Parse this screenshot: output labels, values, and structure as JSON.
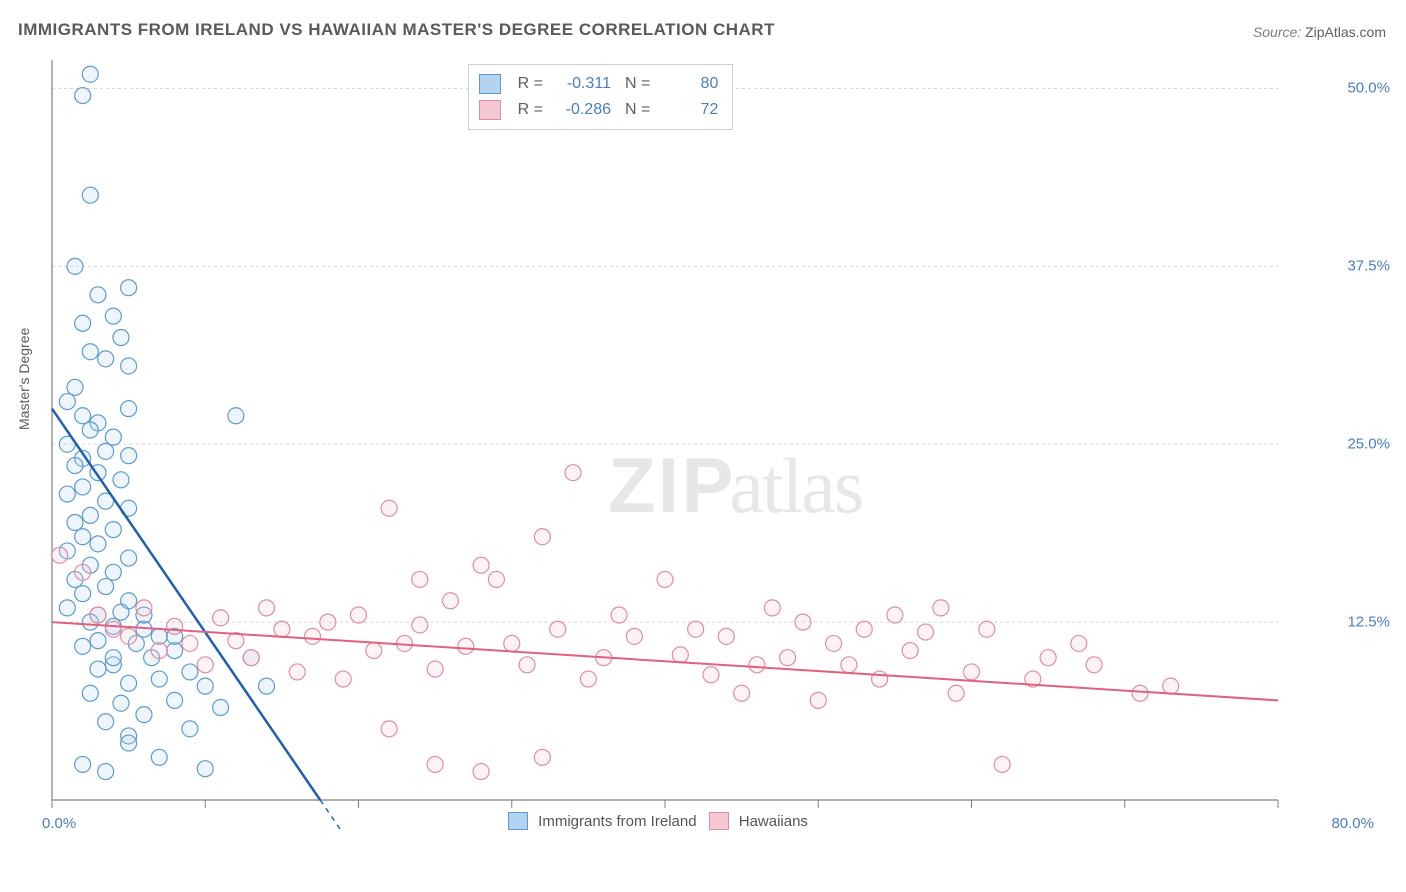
{
  "title": "IMMIGRANTS FROM IRELAND VS HAWAIIAN MASTER'S DEGREE CORRELATION CHART",
  "source_label": "Source: ",
  "source_value": "ZipAtlas.com",
  "watermark_bold": "ZIP",
  "watermark_light": "atlas",
  "chart": {
    "type": "scatter",
    "xlim": [
      0,
      80
    ],
    "ylim": [
      0,
      52
    ],
    "x_axis_left_label": "0.0%",
    "x_axis_right_label": "80.0%",
    "y_label": "Master's Degree",
    "y_ticks": [
      12.5,
      25.0,
      37.5,
      50.0
    ],
    "y_tick_labels": [
      "12.5%",
      "25.0%",
      "37.5%",
      "50.0%"
    ],
    "x_ticks": [
      0,
      10,
      20,
      30,
      40,
      50,
      60,
      70,
      80
    ],
    "grid_color": "#d8d8d8",
    "grid_dash": "3,3",
    "axis_color": "#808080",
    "background_color": "#ffffff",
    "marker_radius": 8,
    "marker_stroke_width": 1.2,
    "marker_fill_opacity": 0.22,
    "series": [
      {
        "name": "Immigrants from Ireland",
        "color_stroke": "#5b9bd5",
        "color_fill": "#b3d3f0",
        "R": "-0.311",
        "N": "80",
        "regression": {
          "x1": 0,
          "y1": 27.5,
          "x2": 17.5,
          "y2": 0,
          "extend_dash_to_x": 22,
          "stroke": "#1f5fb0",
          "width": 2.5
        },
        "points": [
          [
            2.5,
            51
          ],
          [
            2,
            49.5
          ],
          [
            2.5,
            42.5
          ],
          [
            5,
            36
          ],
          [
            1.5,
            37.5
          ],
          [
            3,
            35.5
          ],
          [
            4,
            34
          ],
          [
            2,
            33.5
          ],
          [
            4.5,
            32.5
          ],
          [
            2.5,
            31.5
          ],
          [
            3.5,
            31
          ],
          [
            5,
            30.5
          ],
          [
            1.5,
            29
          ],
          [
            1,
            28
          ],
          [
            2,
            27
          ],
          [
            5,
            27.5
          ],
          [
            3,
            26.5
          ],
          [
            12,
            27
          ],
          [
            2.5,
            26
          ],
          [
            4,
            25.5
          ],
          [
            1,
            25
          ],
          [
            3.5,
            24.5
          ],
          [
            2,
            24
          ],
          [
            5,
            24.2
          ],
          [
            1.5,
            23.5
          ],
          [
            3,
            23
          ],
          [
            4.5,
            22.5
          ],
          [
            2,
            22
          ],
          [
            1,
            21.5
          ],
          [
            3.5,
            21
          ],
          [
            5,
            20.5
          ],
          [
            2.5,
            20
          ],
          [
            1.5,
            19.5
          ],
          [
            4,
            19
          ],
          [
            2,
            18.5
          ],
          [
            3,
            18
          ],
          [
            1,
            17.5
          ],
          [
            5,
            17
          ],
          [
            2.5,
            16.5
          ],
          [
            4,
            16
          ],
          [
            1.5,
            15.5
          ],
          [
            3.5,
            15
          ],
          [
            2,
            14.5
          ],
          [
            5,
            14
          ],
          [
            1,
            13.5
          ],
          [
            3,
            13
          ],
          [
            4.5,
            13.2
          ],
          [
            2.5,
            12.5
          ],
          [
            6,
            12
          ],
          [
            4,
            12.2
          ],
          [
            7,
            11.5
          ],
          [
            3,
            11.2
          ],
          [
            5.5,
            11
          ],
          [
            8,
            10.5
          ],
          [
            2,
            10.8
          ],
          [
            6.5,
            10
          ],
          [
            4,
            9.5
          ],
          [
            9,
            9
          ],
          [
            3,
            9.2
          ],
          [
            7,
            8.5
          ],
          [
            5,
            8.2
          ],
          [
            10,
            8
          ],
          [
            2.5,
            7.5
          ],
          [
            8,
            7
          ],
          [
            4.5,
            6.8
          ],
          [
            11,
            6.5
          ],
          [
            6,
            6
          ],
          [
            3.5,
            5.5
          ],
          [
            9,
            5
          ],
          [
            5,
            4.5
          ],
          [
            13,
            10
          ],
          [
            14,
            8
          ],
          [
            2,
            2.5
          ],
          [
            3.5,
            2
          ],
          [
            10,
            2.2
          ],
          [
            5,
            4
          ],
          [
            7,
            3
          ],
          [
            8,
            11.5
          ],
          [
            6,
            13
          ],
          [
            4,
            10
          ]
        ]
      },
      {
        "name": "Hawaiians",
        "color_stroke": "#e28ca3",
        "color_fill": "#f5c7d3",
        "R": "-0.286",
        "N": "72",
        "regression": {
          "x1": 0,
          "y1": 12.5,
          "x2": 80,
          "y2": 7.0,
          "stroke": "#e0607e",
          "width": 2
        },
        "points": [
          [
            0.5,
            17.2
          ],
          [
            2,
            16
          ],
          [
            3,
            13
          ],
          [
            4,
            12
          ],
          [
            5,
            11.5
          ],
          [
            6,
            13.5
          ],
          [
            7,
            10.5
          ],
          [
            8,
            12.2
          ],
          [
            9,
            11
          ],
          [
            10,
            9.5
          ],
          [
            11,
            12.8
          ],
          [
            12,
            11.2
          ],
          [
            13,
            10
          ],
          [
            14,
            13.5
          ],
          [
            15,
            12
          ],
          [
            16,
            9
          ],
          [
            17,
            11.5
          ],
          [
            18,
            12.5
          ],
          [
            19,
            8.5
          ],
          [
            20,
            13
          ],
          [
            21,
            10.5
          ],
          [
            22,
            20.5
          ],
          [
            23,
            11
          ],
          [
            24,
            12.3
          ],
          [
            24,
            15.5
          ],
          [
            25,
            9.2
          ],
          [
            26,
            14
          ],
          [
            27,
            10.8
          ],
          [
            28,
            16.5
          ],
          [
            29,
            15.5
          ],
          [
            30,
            11
          ],
          [
            31,
            9.5
          ],
          [
            32,
            18.5
          ],
          [
            33,
            12
          ],
          [
            34,
            23
          ],
          [
            35,
            8.5
          ],
          [
            36,
            10
          ],
          [
            37,
            13
          ],
          [
            38,
            11.5
          ],
          [
            40,
            15.5
          ],
          [
            41,
            10.2
          ],
          [
            42,
            12
          ],
          [
            43,
            8.8
          ],
          [
            44,
            11.5
          ],
          [
            45,
            7.5
          ],
          [
            46,
            9.5
          ],
          [
            47,
            13.5
          ],
          [
            48,
            10
          ],
          [
            49,
            12.5
          ],
          [
            50,
            7
          ],
          [
            51,
            11
          ],
          [
            52,
            9.5
          ],
          [
            53,
            12
          ],
          [
            54,
            8.5
          ],
          [
            55,
            13
          ],
          [
            56,
            10.5
          ],
          [
            57,
            11.8
          ],
          [
            58,
            13.5
          ],
          [
            59,
            7.5
          ],
          [
            60,
            9
          ],
          [
            61,
            12
          ],
          [
            62,
            2.5
          ],
          [
            64,
            8.5
          ],
          [
            65,
            10
          ],
          [
            67,
            11
          ],
          [
            68,
            9.5
          ],
          [
            71,
            7.5
          ],
          [
            73,
            8
          ],
          [
            22,
            5
          ],
          [
            28,
            2
          ],
          [
            32,
            3
          ],
          [
            25,
            2.5
          ]
        ]
      }
    ],
    "top_legend_labels": {
      "R": "R =",
      "N": "N ="
    },
    "bottom_legend": [
      {
        "swatch_fill": "#b3d3f0",
        "swatch_stroke": "#5b9bd5",
        "label": "Immigrants from Ireland"
      },
      {
        "swatch_fill": "#f5c7d3",
        "swatch_stroke": "#e28ca3",
        "label": "Hawaiians"
      }
    ]
  }
}
